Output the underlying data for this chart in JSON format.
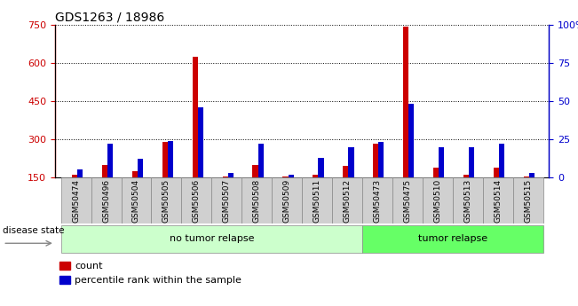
{
  "title": "GDS1263 / 18986",
  "samples": [
    "GSM50474",
    "GSM50496",
    "GSM50504",
    "GSM50505",
    "GSM50506",
    "GSM50507",
    "GSM50508",
    "GSM50509",
    "GSM50511",
    "GSM50512",
    "GSM50473",
    "GSM50475",
    "GSM50510",
    "GSM50513",
    "GSM50514",
    "GSM50515"
  ],
  "count_values": [
    160,
    200,
    175,
    290,
    625,
    155,
    200,
    155,
    162,
    195,
    283,
    740,
    190,
    160,
    190,
    155
  ],
  "percentile_values": [
    5,
    22,
    12,
    24,
    46,
    3,
    22,
    2,
    13,
    20,
    23,
    48,
    20,
    20,
    22,
    3
  ],
  "no_tumor_count": 10,
  "tumor_count": 6,
  "left_ylim": [
    150,
    750
  ],
  "left_yticks": [
    150,
    300,
    450,
    600,
    750
  ],
  "right_ylim": [
    0,
    100
  ],
  "right_yticks": [
    0,
    25,
    50,
    75,
    100
  ],
  "count_color": "#cc0000",
  "percentile_color": "#0000cc",
  "no_tumor_color": "#ccffcc",
  "tumor_color": "#66ff66",
  "bar_bg_color": "#d0d0d0",
  "legend_count_label": "count",
  "legend_percentile_label": "percentile rank within the sample",
  "disease_state_label": "disease state",
  "no_tumor_label": "no tumor relapse",
  "tumor_label": "tumor relapse",
  "grid_lines": [
    300,
    450,
    600
  ],
  "figsize": [
    6.51,
    3.45
  ],
  "dpi": 100
}
